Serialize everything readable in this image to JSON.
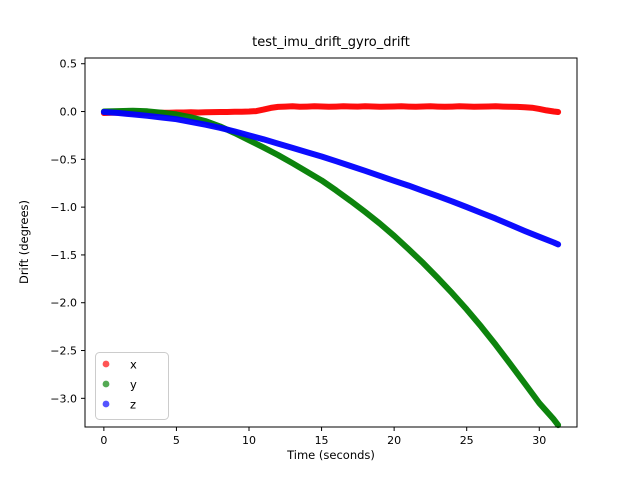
{
  "chart_data": {
    "type": "line",
    "title": "test_imu_drift_gyro_drift",
    "xlabel": "Time (seconds)",
    "ylabel": "Drift (degrees)",
    "xlim": [
      -1.3,
      32.6
    ],
    "ylim": [
      -3.3,
      0.56
    ],
    "grid": false,
    "legend_position": "lower left",
    "xticks": {
      "values": [
        0,
        5,
        10,
        15,
        20,
        25,
        30
      ],
      "labels": [
        "0",
        "5",
        "10",
        "15",
        "20",
        "25",
        "30"
      ]
    },
    "yticks": {
      "values": [
        0.5,
        0.0,
        -0.5,
        -1.0,
        -1.5,
        -2.0,
        -2.5,
        -3.0
      ],
      "labels": [
        "0.5",
        "0.0",
        "−0.5",
        "−1.0",
        "−1.5",
        "−2.0",
        "−2.5",
        "−3.0"
      ]
    },
    "series": [
      {
        "name": "x",
        "color": "#ff0000",
        "legend_color": "#ff5454",
        "points": [
          [
            0,
            -0.015
          ],
          [
            0.5,
            -0.012
          ],
          [
            1,
            -0.01
          ],
          [
            1.5,
            -0.015
          ],
          [
            2,
            -0.018
          ],
          [
            2.5,
            -0.02
          ],
          [
            3,
            -0.018
          ],
          [
            3.5,
            -0.015
          ],
          [
            4,
            -0.012
          ],
          [
            4.5,
            -0.012
          ],
          [
            5,
            -0.01
          ],
          [
            5.5,
            -0.01
          ],
          [
            6,
            -0.008
          ],
          [
            6.5,
            -0.01
          ],
          [
            7,
            -0.008
          ],
          [
            7.5,
            -0.006
          ],
          [
            8,
            -0.005
          ],
          [
            8.5,
            -0.005
          ],
          [
            9,
            -0.003
          ],
          [
            9.5,
            -0.002
          ],
          [
            10,
            0.0
          ],
          [
            10.5,
            0.005
          ],
          [
            11,
            0.02
          ],
          [
            11.5,
            0.038
          ],
          [
            12,
            0.048
          ],
          [
            12.5,
            0.052
          ],
          [
            13,
            0.055
          ],
          [
            13.5,
            0.05
          ],
          [
            14,
            0.052
          ],
          [
            14.5,
            0.055
          ],
          [
            15,
            0.053
          ],
          [
            15.5,
            0.05
          ],
          [
            16,
            0.052
          ],
          [
            16.5,
            0.055
          ],
          [
            17,
            0.053
          ],
          [
            17.5,
            0.052
          ],
          [
            18,
            0.055
          ],
          [
            18.5,
            0.053
          ],
          [
            19,
            0.05
          ],
          [
            19.5,
            0.052
          ],
          [
            20,
            0.053
          ],
          [
            20.5,
            0.055
          ],
          [
            21,
            0.052
          ],
          [
            21.5,
            0.05
          ],
          [
            22,
            0.053
          ],
          [
            22.5,
            0.055
          ],
          [
            23,
            0.052
          ],
          [
            23.5,
            0.05
          ],
          [
            24,
            0.052
          ],
          [
            24.5,
            0.055
          ],
          [
            25,
            0.053
          ],
          [
            25.5,
            0.05
          ],
          [
            26,
            0.052
          ],
          [
            26.5,
            0.053
          ],
          [
            27,
            0.055
          ],
          [
            27.5,
            0.052
          ],
          [
            28,
            0.05
          ],
          [
            28.5,
            0.048
          ],
          [
            29,
            0.045
          ],
          [
            29.5,
            0.04
          ],
          [
            30,
            0.028
          ],
          [
            30.5,
            0.012
          ],
          [
            31,
            0.0
          ],
          [
            31.3,
            -0.005
          ]
        ]
      },
      {
        "name": "y",
        "color": "#007d00",
        "legend_color": "#54aa54",
        "points": [
          [
            0,
            0.0
          ],
          [
            1,
            0.005
          ],
          [
            2,
            0.008
          ],
          [
            3,
            0.002
          ],
          [
            4,
            -0.012
          ],
          [
            5,
            -0.03
          ],
          [
            6,
            -0.06
          ],
          [
            7,
            -0.1
          ],
          [
            8,
            -0.155
          ],
          [
            9,
            -0.225
          ],
          [
            10,
            -0.3
          ],
          [
            11,
            -0.375
          ],
          [
            12,
            -0.455
          ],
          [
            13,
            -0.54
          ],
          [
            14,
            -0.63
          ],
          [
            15,
            -0.72
          ],
          [
            16,
            -0.825
          ],
          [
            17,
            -0.935
          ],
          [
            18,
            -1.05
          ],
          [
            19,
            -1.17
          ],
          [
            20,
            -1.3
          ],
          [
            21,
            -1.44
          ],
          [
            22,
            -1.585
          ],
          [
            23,
            -1.74
          ],
          [
            24,
            -1.9
          ],
          [
            25,
            -2.07
          ],
          [
            26,
            -2.25
          ],
          [
            27,
            -2.44
          ],
          [
            28,
            -2.64
          ],
          [
            29,
            -2.845
          ],
          [
            30,
            -3.05
          ],
          [
            31,
            -3.22
          ],
          [
            31.3,
            -3.28
          ]
        ]
      },
      {
        "name": "z",
        "color": "#0000ff",
        "legend_color": "#5454ff",
        "points": [
          [
            0,
            -0.005
          ],
          [
            1,
            -0.015
          ],
          [
            2,
            -0.03
          ],
          [
            3,
            -0.045
          ],
          [
            4,
            -0.062
          ],
          [
            5,
            -0.08
          ],
          [
            6,
            -0.108
          ],
          [
            7,
            -0.138
          ],
          [
            8,
            -0.17
          ],
          [
            9,
            -0.208
          ],
          [
            10,
            -0.25
          ],
          [
            11,
            -0.29
          ],
          [
            12,
            -0.335
          ],
          [
            13,
            -0.38
          ],
          [
            14,
            -0.425
          ],
          [
            15,
            -0.47
          ],
          [
            16,
            -0.52
          ],
          [
            17,
            -0.57
          ],
          [
            18,
            -0.62
          ],
          [
            19,
            -0.672
          ],
          [
            20,
            -0.725
          ],
          [
            21,
            -0.775
          ],
          [
            22,
            -0.83
          ],
          [
            23,
            -0.885
          ],
          [
            24,
            -0.94
          ],
          [
            25,
            -1.0
          ],
          [
            26,
            -1.06
          ],
          [
            27,
            -1.12
          ],
          [
            28,
            -1.185
          ],
          [
            29,
            -1.25
          ],
          [
            30,
            -1.31
          ],
          [
            31,
            -1.37
          ],
          [
            31.3,
            -1.39
          ]
        ]
      }
    ]
  }
}
